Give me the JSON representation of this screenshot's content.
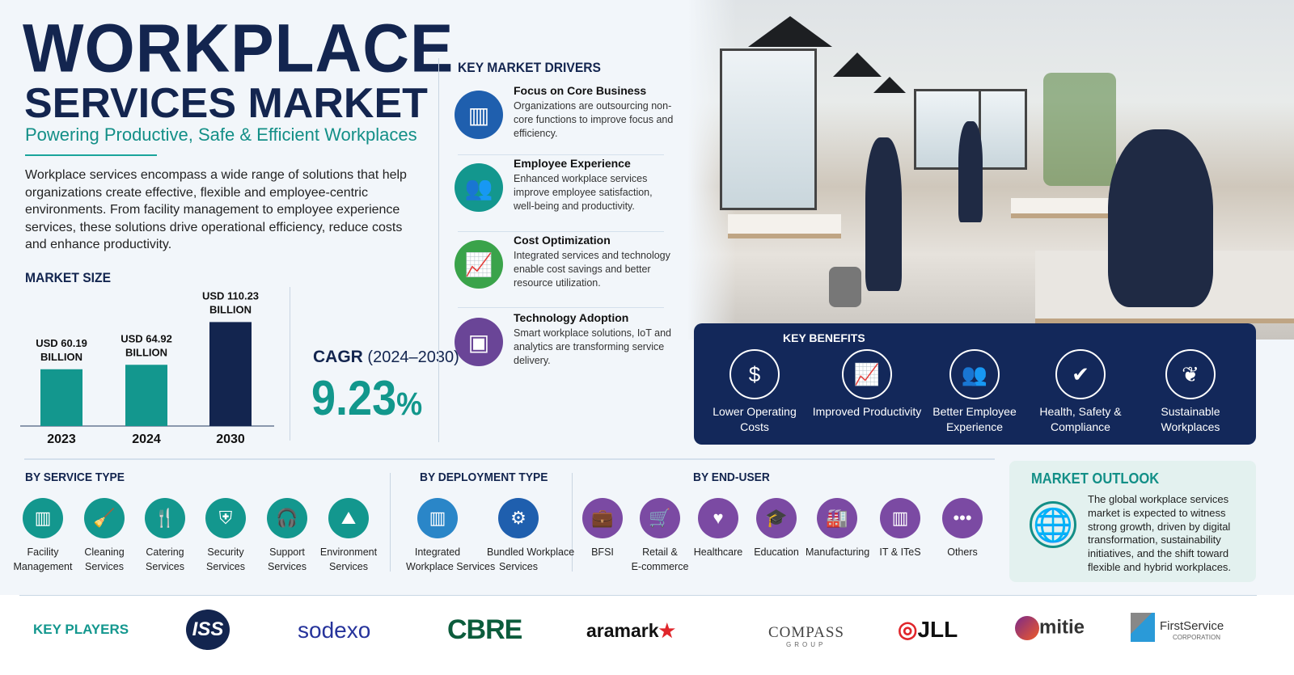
{
  "header": {
    "title_line1": "WORKPLACE",
    "title_line2": "SERVICES MARKET",
    "subtitle": "Powering Productive, Safe & Efficient Workplaces",
    "intro": "Workplace services encompass a wide range of solutions that help organizations create effective, flexible and employee-centric environments. From facility management to employee experience services, these solutions drive operational efficiency, reduce costs and enhance productivity."
  },
  "market_size": {
    "heading": "MARKET SIZE",
    "cagr_label": "CAGR",
    "cagr_period": "(2024–2030)",
    "cagr_value": "9.23",
    "cagr_unit": "%"
  },
  "chart_data": {
    "type": "bar",
    "categories": [
      "2023",
      "2024",
      "2030"
    ],
    "values": [
      60.19,
      64.92,
      110.23
    ],
    "data_labels": [
      [
        "USD 60.19",
        "BILLION"
      ],
      [
        "USD 64.92",
        "BILLION"
      ],
      [
        "USD 110.23",
        "BILLION"
      ]
    ],
    "unit": "USD Billion",
    "colors": [
      "#13978e",
      "#13978e",
      "#13254f"
    ],
    "ylim": [
      0,
      120
    ]
  },
  "drivers": {
    "heading": "KEY MARKET DRIVERS",
    "items": [
      {
        "title": "Focus on Core Business",
        "desc": "Organizations are outsourcing non-core functions to improve focus and efficiency.",
        "icon": "building-icon",
        "color": "#1f5fae"
      },
      {
        "title": "Employee Experience",
        "desc": "Enhanced workplace services improve employee satisfaction, well-being and productivity.",
        "icon": "people-icon",
        "color": "#13978e"
      },
      {
        "title": "Cost Optimization",
        "desc": "Integrated services and technology enable cost savings and better resource utilization.",
        "icon": "growth-chart-icon",
        "color": "#3aa34a"
      },
      {
        "title": "Technology Adoption",
        "desc": "Smart workplace solutions, IoT and analytics are transforming service delivery.",
        "icon": "chip-icon",
        "color": "#6a4597"
      }
    ]
  },
  "benefits": {
    "heading": "KEY BENEFITS",
    "items": [
      {
        "label": "Lower Operating Costs",
        "icon": "dollar-down-icon",
        "glyph": "$"
      },
      {
        "label": "Improved Productivity",
        "icon": "bar-chart-icon",
        "glyph": "📈"
      },
      {
        "label": "Better Employee Experience",
        "icon": "people-icon",
        "glyph": "👥"
      },
      {
        "label": "Health, Safety & Compliance",
        "icon": "shield-check-icon",
        "glyph": "✔"
      },
      {
        "label": "Sustainable Workplaces",
        "icon": "leaf-icon",
        "glyph": "❦"
      }
    ]
  },
  "segments": {
    "service": {
      "heading": "BY SERVICE TYPE",
      "color": "#13978e",
      "items": [
        {
          "label": "Facility\nManagement",
          "icon": "building-icon",
          "glyph": "▥"
        },
        {
          "label": "Cleaning\nServices",
          "icon": "broom-icon",
          "glyph": "🧹"
        },
        {
          "label": "Catering\nServices",
          "icon": "fork-knife-icon",
          "glyph": "🍴"
        },
        {
          "label": "Security\nServices",
          "icon": "shield-icon",
          "glyph": "⛨"
        },
        {
          "label": "Support\nServices",
          "icon": "headset-icon",
          "glyph": "🎧"
        },
        {
          "label": "Environment\nServices",
          "icon": "landscape-icon",
          "glyph": "⛰"
        }
      ]
    },
    "deployment": {
      "heading": "BY DEPLOYMENT TYPE",
      "items": [
        {
          "label": "Integrated\nWorkplace Services",
          "icon": "building-icon",
          "glyph": "▥",
          "color": "#2a86c8"
        },
        {
          "label": "Bundled Workplace\nServices",
          "icon": "gear-icon",
          "glyph": "⚙",
          "color": "#1f5fae"
        }
      ]
    },
    "end_user": {
      "heading": "BY END-USER",
      "color": "#7b4aa3",
      "items": [
        {
          "label": "BFSI",
          "icon": "briefcase-icon",
          "glyph": "💼"
        },
        {
          "label": "Retail &\nE-commerce",
          "icon": "cart-icon",
          "glyph": "🛒"
        },
        {
          "label": "Healthcare",
          "icon": "heart-plus-icon",
          "glyph": "♥"
        },
        {
          "label": "Education",
          "icon": "graduation-cap-icon",
          "glyph": "🎓"
        },
        {
          "label": "Manufacturing",
          "icon": "factory-icon",
          "glyph": "🏭"
        },
        {
          "label": "IT & ITeS",
          "icon": "building-icon",
          "glyph": "▥"
        },
        {
          "label": "Others",
          "icon": "more-icon",
          "glyph": "•••"
        }
      ]
    }
  },
  "outlook": {
    "heading": "MARKET OUTLOOK",
    "text": "The global workplace services market is expected to witness strong growth, driven by digital transformation, sustainability initiatives, and the shift toward flexible and hybrid workplaces."
  },
  "players": {
    "heading": "KEY PLAYERS",
    "logos": [
      "ISS",
      "sodexo",
      "CBRE",
      "aramark",
      "COMPASS",
      "GROUP",
      "JLL",
      "mitie",
      "FirstService",
      "CORPORATION"
    ]
  }
}
